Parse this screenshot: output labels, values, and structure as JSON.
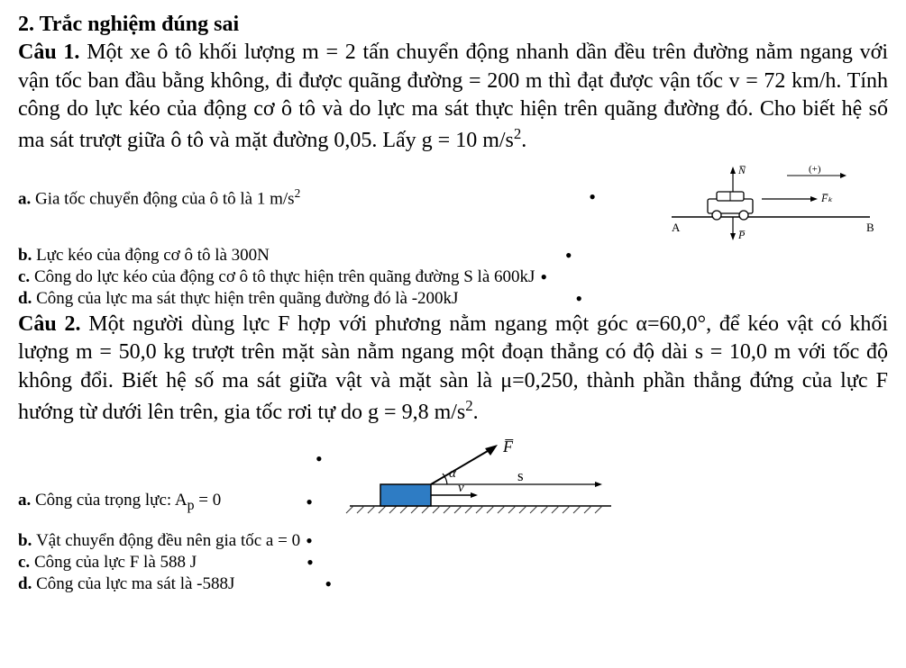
{
  "section_heading": "2. Trắc nghiệm đúng sai",
  "q1": {
    "label": "Câu 1.",
    "text_html": "Một xe ô tô khối lượng m = 2 tấn chuyển động nhanh dần đều trên đường nằm ngang với vận tốc ban đầu bằng không, đi được quãng đường  = 200 m thì đạt được vận tốc v = 72 km/h. Tính công do lực kéo của động cơ ô tô và do lực ma sát thực hiện trên quãng đường đó. Cho biết hệ số ma sát trượt giữa ô tô và mặt đường 0,05. Lấy g = 10 m/s<sup>2</sup>.",
    "opts": {
      "a": "Gia tốc chuyển động của ô tô là 1 m/s",
      "a_sup": "2",
      "b": "Lực kéo của động cơ ô tô là 300N",
      "c": "Công do lực kéo của động cơ ô tô thực hiện trên quãng đường S là 600kJ",
      "d": "Công của lực ma sát thực hiện trên quãng đường đó là -200kJ"
    },
    "diagram": {
      "N_label": "N̅",
      "plus_label": "(+)",
      "Fk_label": "F̅ₖ",
      "A_label": "A",
      "B_label": "B",
      "P_label": "P̅",
      "ground_color": "#555555",
      "car_fill": "#ffffff",
      "car_stroke": "#000000"
    }
  },
  "q2": {
    "label": "Câu 2.",
    "text_html": "Một người dùng lực F hợp với phương nằm ngang một góc α=60,0°, để kéo vật có khối lượng m = 50,0 kg trượt trên mặt sàn nằm ngang một đoạn thẳng có độ dài s = 10,0 m với tốc độ không đổi. Biết hệ số ma sát giữa vật và mặt sàn là μ=0,250, thành phần thẳng đứng của lực F hướng từ dưới lên trên, gia tốc rơi tự do g = 9,8 m/s<sup>2</sup>.",
    "opts": {
      "a_prefix": "Công của trọng lực: A",
      "a_sub": "p",
      "a_suffix": " = 0",
      "b": "Vật chuyển động đều nên gia tốc a = 0",
      "c": "Công của lực F là 588 J",
      "d": "Công của lực ma sát là -588J"
    },
    "diagram": {
      "F_label": "F̅",
      "alpha_label": "α",
      "v_label": "v̅",
      "s_label": "s",
      "block_fill": "#2e7cc4",
      "block_stroke": "#000000",
      "ground_color": "#333333"
    }
  }
}
